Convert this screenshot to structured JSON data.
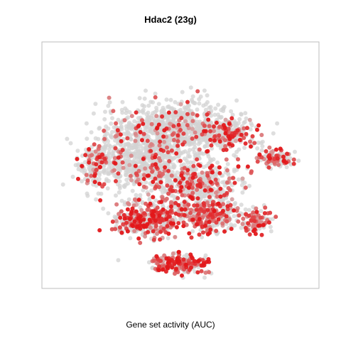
{
  "chart_data": {
    "type": "scatter",
    "title": "Hdac2 (23g)",
    "xlabel": "Gene set activity (AUC)",
    "ylabel": "",
    "grid": false,
    "legend": "none",
    "colors": {
      "low": "#d3d3d3",
      "high": "#e3171a"
    },
    "clusters": [
      {
        "cx": -0.05,
        "cy": 0.3,
        "sx": 0.4,
        "sy": 0.2,
        "n": 700,
        "act": 0.1
      },
      {
        "cx": 0.35,
        "cy": 0.25,
        "sx": 0.18,
        "sy": 0.13,
        "n": 200,
        "act": 0.45
      },
      {
        "cx": -0.3,
        "cy": 0.05,
        "sx": 0.3,
        "sy": 0.25,
        "n": 600,
        "act": 0.12
      },
      {
        "cx": -0.6,
        "cy": 0.0,
        "sx": 0.12,
        "sy": 0.15,
        "n": 150,
        "act": 0.25
      },
      {
        "cx": 0.1,
        "cy": -0.15,
        "sx": 0.3,
        "sy": 0.18,
        "n": 500,
        "act": 0.3
      },
      {
        "cx": -0.25,
        "cy": -0.45,
        "sx": 0.22,
        "sy": 0.12,
        "n": 400,
        "act": 0.55
      },
      {
        "cx": 0.2,
        "cy": -0.4,
        "sx": 0.2,
        "sy": 0.12,
        "n": 300,
        "act": 0.45
      },
      {
        "cx": 0.0,
        "cy": -0.8,
        "sx": 0.17,
        "sy": 0.07,
        "n": 220,
        "act": 0.6
      },
      {
        "cx": 0.68,
        "cy": 0.05,
        "sx": 0.12,
        "sy": 0.06,
        "n": 120,
        "act": 0.4
      },
      {
        "cx": 0.55,
        "cy": -0.45,
        "sx": 0.1,
        "sy": 0.08,
        "n": 100,
        "act": 0.55
      }
    ],
    "xlim": [
      -1,
      1
    ],
    "ylim": [
      -1,
      1
    ]
  }
}
